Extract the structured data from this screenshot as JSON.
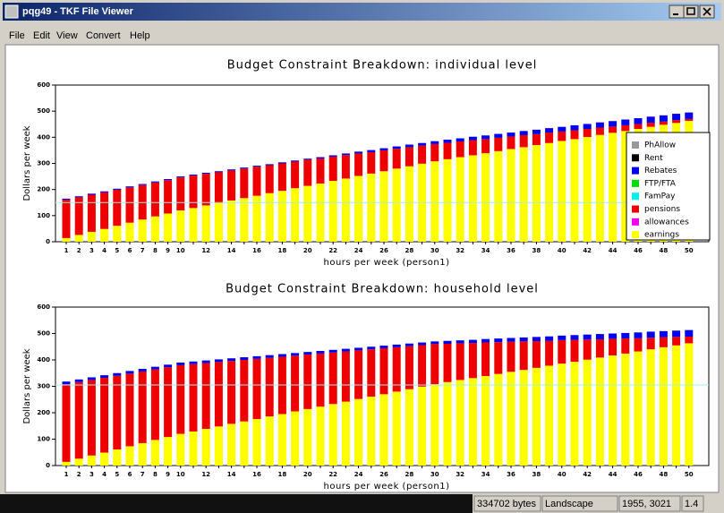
{
  "window": {
    "title": "pqg49 - TKF File Viewer",
    "menu": [
      "File",
      "Edit",
      "View",
      "Convert",
      "Help"
    ],
    "status": [
      "334702 bytes",
      "Landscape",
      "1955, 3021",
      "1.4"
    ]
  },
  "chart_data": [
    {
      "type": "stacked_bar",
      "title": "Budget Constraint Breakdown: individual level",
      "x_label": "hours per week (person1)",
      "y_label": "Dollars per week",
      "categories": [
        1,
        2,
        3,
        4,
        5,
        6,
        7,
        8,
        9,
        10,
        null,
        12,
        null,
        14,
        null,
        16,
        null,
        18,
        null,
        20,
        null,
        22,
        null,
        24,
        null,
        26,
        null,
        28,
        null,
        30,
        null,
        32,
        null,
        34,
        null,
        36,
        null,
        38,
        null,
        40,
        null,
        42,
        null,
        44,
        null,
        46,
        null,
        48,
        null,
        50
      ],
      "ylim": [
        0,
        600
      ],
      "yticks": [
        0,
        100,
        200,
        300,
        400,
        500,
        600
      ],
      "reference_line": 150,
      "reference_color": "#9ff0f0",
      "legend": "right",
      "series": [
        {
          "name": "PhAllow",
          "color": "#999999",
          "values": [
            0,
            0,
            0,
            0,
            0,
            0,
            0,
            0,
            0,
            0,
            0,
            0,
            0,
            0,
            0,
            0,
            0,
            0,
            0,
            0,
            0,
            0,
            0,
            0,
            0,
            0,
            0,
            0,
            0,
            0,
            0,
            0,
            0,
            0,
            0,
            0,
            0,
            0,
            0,
            0,
            0,
            0,
            0,
            0,
            0,
            0,
            0,
            0,
            0,
            0
          ]
        },
        {
          "name": "Rent",
          "color": "#000000",
          "values": [
            0,
            0,
            0,
            0,
            0,
            0,
            0,
            0,
            0,
            0,
            0,
            0,
            0,
            0,
            0,
            0,
            0,
            0,
            0,
            0,
            0,
            0,
            0,
            0,
            0,
            0,
            0,
            0,
            0,
            0,
            0,
            0,
            0,
            0,
            0,
            0,
            0,
            0,
            0,
            0,
            0,
            0,
            0,
            0,
            0,
            0,
            0,
            0,
            0,
            0
          ]
        },
        {
          "name": "Rebates",
          "color": "#0000ee",
          "values": [
            4,
            4,
            4,
            4,
            4,
            4,
            4,
            4,
            4,
            4,
            4,
            4,
            4,
            4,
            4,
            4,
            4,
            4,
            4,
            4,
            5,
            5,
            6,
            7,
            8,
            8,
            9,
            10,
            10,
            11,
            12,
            12,
            13,
            14,
            15,
            15,
            16,
            17,
            17,
            18,
            19,
            19,
            20,
            21,
            22,
            22,
            23,
            24,
            24,
            25
          ]
        },
        {
          "name": "FTP/FTA",
          "color": "#00dd00",
          "values": [
            0,
            0,
            0,
            0,
            0,
            0,
            0,
            0,
            0,
            0,
            0,
            0,
            0,
            0,
            0,
            0,
            0,
            0,
            0,
            0,
            0,
            0,
            0,
            0,
            0,
            0,
            0,
            0,
            0,
            0,
            0,
            0,
            0,
            0,
            0,
            0,
            0,
            0,
            0,
            0,
            0,
            0,
            0,
            0,
            0,
            0,
            0,
            0,
            0,
            0
          ]
        },
        {
          "name": "FamPay",
          "color": "#00eeee",
          "values": [
            0,
            0,
            0,
            0,
            0,
            0,
            0,
            0,
            0,
            0,
            0,
            0,
            0,
            0,
            0,
            0,
            0,
            0,
            0,
            0,
            0,
            0,
            0,
            0,
            0,
            0,
            0,
            0,
            0,
            0,
            0,
            0,
            0,
            0,
            0,
            0,
            0,
            0,
            0,
            0,
            0,
            0,
            0,
            0,
            0,
            0,
            0,
            0,
            0,
            0
          ]
        },
        {
          "name": "pensions",
          "color": "#ee0000",
          "values": [
            147,
            144,
            142,
            140,
            138,
            135,
            132,
            130,
            128,
            126,
            124,
            121,
            118,
            115,
            113,
            111,
            107,
            105,
            102,
            100,
            96,
            93,
            90,
            86,
            82,
            80,
            76,
            73,
            69,
            66,
            63,
            60,
            58,
            54,
            51,
            48,
            46,
            42,
            40,
            36,
            34,
            31,
            28,
            24,
            22,
            19,
            16,
            12,
            11,
            7
          ]
        },
        {
          "name": "allowances",
          "color": "#ee00ee",
          "values": [
            0,
            0,
            0,
            0,
            0,
            0,
            0,
            0,
            0,
            0,
            0,
            0,
            0,
            0,
            0,
            0,
            0,
            0,
            0,
            0,
            0,
            0,
            0,
            0,
            0,
            0,
            0,
            0,
            0,
            0,
            0,
            0,
            0,
            0,
            0,
            0,
            0,
            0,
            0,
            0,
            0,
            0,
            0,
            0,
            0,
            0,
            0,
            0,
            0,
            0
          ]
        },
        {
          "name": "earnings",
          "color": "#ffff00",
          "values": [
            14,
            26,
            38,
            49,
            61,
            73,
            85,
            97,
            108,
            120,
            129,
            139,
            148,
            158,
            167,
            176,
            186,
            195,
            205,
            214,
            223,
            233,
            242,
            252,
            261,
            270,
            280,
            289,
            299,
            308,
            316,
            324,
            331,
            339,
            347,
            355,
            362,
            370,
            378,
            386,
            393,
            401,
            409,
            417,
            424,
            432,
            440,
            448,
            455,
            463
          ]
        }
      ]
    },
    {
      "type": "stacked_bar",
      "title": "Budget Constraint Breakdown: household level",
      "x_label": "hours per week (person1)",
      "y_label": "Dollars per week",
      "categories": [
        1,
        2,
        3,
        4,
        5,
        6,
        7,
        8,
        9,
        10,
        null,
        12,
        null,
        14,
        null,
        16,
        null,
        18,
        null,
        20,
        null,
        22,
        null,
        24,
        null,
        26,
        null,
        28,
        null,
        30,
        null,
        32,
        null,
        34,
        null,
        36,
        null,
        38,
        null,
        40,
        null,
        42,
        null,
        44,
        null,
        46,
        null,
        48,
        null,
        50
      ],
      "ylim": [
        0,
        600
      ],
      "yticks": [
        0,
        100,
        200,
        300,
        400,
        500,
        600
      ],
      "reference_line": 305,
      "reference_color": "#9ff0f0",
      "series": [
        {
          "color": "#0000ee",
          "values": [
            10,
            10,
            10,
            10,
            10,
            10,
            10,
            10,
            10,
            10,
            10,
            10,
            10,
            10,
            10,
            10,
            10,
            10,
            10,
            10,
            10,
            10,
            10,
            10,
            10,
            10,
            10,
            10,
            10,
            10,
            11,
            11,
            12,
            13,
            14,
            14,
            15,
            16,
            17,
            17,
            18,
            19,
            20,
            20,
            21,
            22,
            23,
            23,
            24,
            25
          ]
        },
        {
          "color": "#ee0000",
          "values": [
            294,
            290,
            286,
            283,
            279,
            275,
            271,
            267,
            264,
            260,
            255,
            249,
            244,
            238,
            233,
            228,
            222,
            217,
            211,
            206,
            201,
            195,
            190,
            184,
            179,
            174,
            168,
            163,
            157,
            152,
            145,
            139,
            133,
            127,
            120,
            114,
            108,
            101,
            94,
            89,
            83,
            76,
            69,
            63,
            57,
            50,
            44,
            38,
            32,
            25
          ]
        },
        {
          "color": "#ffff00",
          "values": [
            14,
            26,
            38,
            49,
            61,
            73,
            85,
            97,
            108,
            120,
            129,
            139,
            148,
            158,
            167,
            176,
            186,
            195,
            205,
            214,
            223,
            233,
            242,
            252,
            261,
            270,
            280,
            289,
            299,
            308,
            316,
            324,
            331,
            339,
            347,
            355,
            362,
            370,
            378,
            386,
            393,
            401,
            409,
            417,
            424,
            432,
            440,
            448,
            455,
            463
          ]
        }
      ]
    }
  ]
}
